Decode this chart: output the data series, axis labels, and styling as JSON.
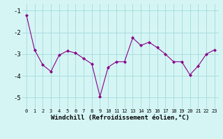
{
  "x": [
    0,
    1,
    2,
    3,
    4,
    5,
    6,
    7,
    8,
    9,
    10,
    11,
    12,
    13,
    14,
    15,
    16,
    17,
    18,
    19,
    20,
    21,
    22,
    23
  ],
  "y": [
    -1.2,
    -2.8,
    -3.5,
    -3.8,
    -3.05,
    -2.85,
    -2.95,
    -3.2,
    -3.45,
    -4.95,
    -3.6,
    -3.35,
    -3.35,
    -2.25,
    -2.6,
    -2.45,
    -2.7,
    -3.0,
    -3.35,
    -3.35,
    -3.95,
    -3.55,
    -3.0,
    -2.8
  ],
  "line_color": "#880088",
  "marker": "D",
  "marker_size": 2.0,
  "bg_color": "#d5f5f5",
  "grid_color": "#aadddd",
  "xlabel": "Windchill (Refroidissement éolien,°C)",
  "xlabel_fontsize": 6.5,
  "xtick_labels": [
    "0",
    "1",
    "2",
    "3",
    "4",
    "5",
    "6",
    "7",
    "8",
    "9",
    "10",
    "11",
    "12",
    "13",
    "14",
    "15",
    "16",
    "17",
    "18",
    "19",
    "20",
    "21",
    "22",
    "23"
  ],
  "ylim": [
    -5.5,
    -0.7
  ],
  "yticks": [
    -5,
    -4,
    -3,
    -2,
    -1
  ],
  "ytick_fontsize": 6.5,
  "xtick_fontsize": 5.0
}
